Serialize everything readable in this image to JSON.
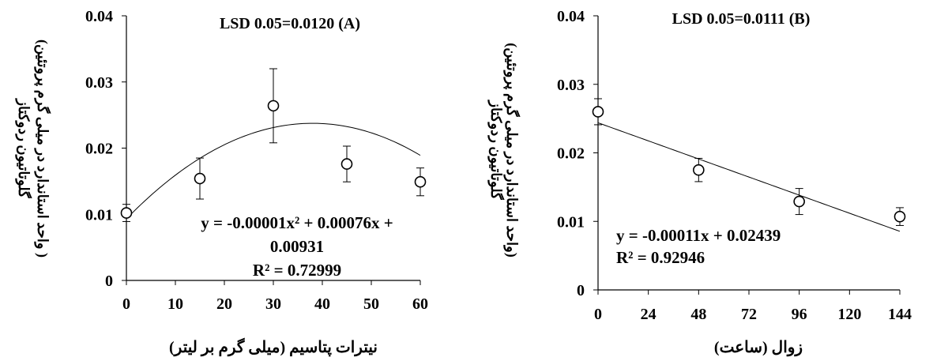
{
  "chart_data": [
    {
      "type": "scatter",
      "panel_label": "(A)",
      "title": "LSD 0.05=0.0120 (A)",
      "xlabel": "نیترات پتاسیم (میلی گرم بر لیتر)",
      "ylabel": [
        "گلوتاتیون ردوکتاز",
        "( واحد استاندارد در میلی گرم پروتئین)"
      ],
      "xlim": [
        0,
        60
      ],
      "ylim": [
        0,
        0.04
      ],
      "x_ticks": [
        "0",
        "10",
        "20",
        "30",
        "40",
        "50",
        "60"
      ],
      "y_ticks": [
        "0",
        "0.01",
        "0.02",
        "0.03",
        "0.04"
      ],
      "grid": false,
      "series": [
        {
          "x": [
            0,
            15,
            30,
            45,
            60
          ],
          "y": [
            0.0102,
            0.0154,
            0.0264,
            0.0176,
            0.0149
          ],
          "error": [
            0.0013,
            0.0031,
            0.0056,
            0.0027,
            0.0021
          ]
        }
      ],
      "trendline": {
        "kind": "polynomial",
        "coefficients": [
          0.00931,
          0.00076,
          -1e-05
        ]
      },
      "equation_lines": [
        "y = -0.00001x² + 0.00076x +",
        "0.00931",
        "R² = 0.72999"
      ]
    },
    {
      "type": "scatter",
      "panel_label": "(B)",
      "title": "LSD 0.05=0.0111  (B)",
      "xlabel": "زوال (ساعت)",
      "ylabel": [
        "گلوتاتیون ردوکتاز",
        "(واحد استاندارد در میلی گرم پروتئین)"
      ],
      "xlim": [
        0,
        144
      ],
      "ylim": [
        0,
        0.04
      ],
      "x_ticks": [
        "0",
        "24",
        "48",
        "72",
        "96",
        "120",
        "144"
      ],
      "y_ticks": [
        "0",
        "0.01",
        "0.02",
        "0.03",
        "0.04"
      ],
      "grid": false,
      "series": [
        {
          "x": [
            0,
            48,
            96,
            144
          ],
          "y": [
            0.026,
            0.0175,
            0.0129,
            0.0107
          ],
          "error": [
            0.0019,
            0.0017,
            0.0019,
            0.0013
          ]
        }
      ],
      "trendline": {
        "kind": "linear",
        "coefficients": [
          0.02439,
          -0.00011
        ]
      },
      "equation_lines": [
        "y = -0.00011x + 0.02439",
        "R² = 0.92946"
      ]
    }
  ]
}
